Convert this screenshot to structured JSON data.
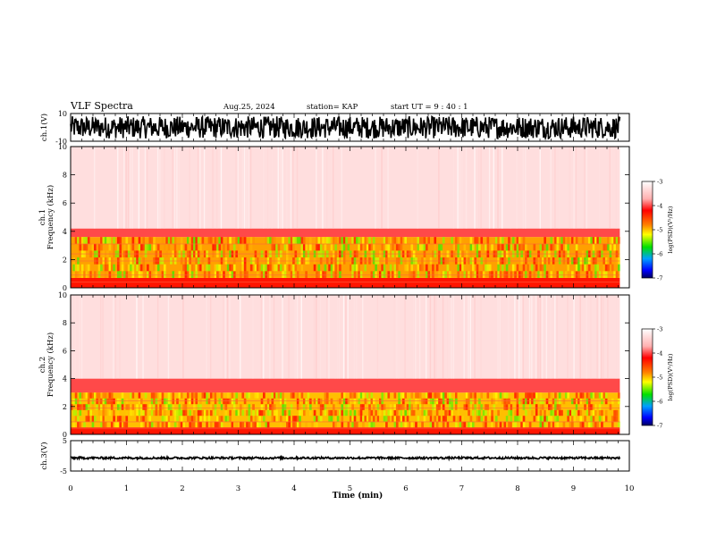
{
  "header": {
    "title": "VLF Spectra",
    "date": "Aug.25, 2024",
    "station": "station= KAP",
    "start_ut": "start  UT =   9 : 40 : 1"
  },
  "chart_data": [
    {
      "type": "line",
      "panel": "ch1-waveform",
      "ylabel": "ch.1(V)",
      "ylim": [
        -10,
        10
      ],
      "y_ticks": [
        "10",
        "-10"
      ],
      "x_range_min": [
        0,
        10
      ],
      "data_end_min": 9.83,
      "description_of_values": "dense noise-like waveform filling roughly -8 to +8 V"
    },
    {
      "type": "heatmap",
      "panel": "ch1-spectrogram",
      "ylabel_top": "ch.1",
      "ylabel": "Frequency (kHz)",
      "ylim": [
        0,
        10
      ],
      "y_ticks": [
        "0",
        "2",
        "4",
        "6",
        "8",
        "10"
      ],
      "x_range_min": [
        0,
        10
      ],
      "data_end_min": 9.83,
      "colorbar": {
        "label": "log(PSD)(V²/Hz)",
        "range": [
          -7,
          -3
        ],
        "ticks": [
          "-3",
          "-4",
          "-5",
          "-6",
          "-7"
        ]
      },
      "bands_khz": [
        {
          "from": 0.0,
          "to": 0.7,
          "level": -4.3
        },
        {
          "from": 0.7,
          "to": 3.6,
          "level": -4.9
        },
        {
          "from": 3.6,
          "to": 4.2,
          "level": -4.0
        },
        {
          "from": 4.2,
          "to": 10.0,
          "level": -3.3
        }
      ]
    },
    {
      "type": "heatmap",
      "panel": "ch2-spectrogram",
      "ylabel_top": "ch.2",
      "ylabel": "Frequency (kHz)",
      "ylim": [
        0,
        10
      ],
      "y_ticks": [
        "0",
        "2",
        "4",
        "6",
        "8",
        "10"
      ],
      "x_range_min": [
        0,
        10
      ],
      "data_end_min": 9.83,
      "colorbar": {
        "label": "log(PSD)(V²/Hz)",
        "range": [
          -7,
          -3
        ],
        "ticks": [
          "-3",
          "-4",
          "-5",
          "-6",
          "-7"
        ]
      },
      "bands_khz": [
        {
          "from": 0.0,
          "to": 0.5,
          "level": -4.3
        },
        {
          "from": 0.5,
          "to": 3.0,
          "level": -5.0
        },
        {
          "from": 3.0,
          "to": 4.0,
          "level": -4.0
        },
        {
          "from": 4.0,
          "to": 10.0,
          "level": -3.3
        }
      ]
    },
    {
      "type": "line",
      "panel": "ch3-waveform",
      "ylabel": "ch.3(V)",
      "ylim": [
        -5,
        5
      ],
      "y_ticks": [
        "5",
        "-5"
      ],
      "x_range_min": [
        0,
        10
      ],
      "data_end_min": 9.83,
      "description_of_values": "thin near-constant band at about -1 V"
    }
  ],
  "x_axis": {
    "label": "Time  (min)",
    "ticks": [
      "0",
      "1",
      "2",
      "3",
      "4",
      "5",
      "6",
      "7",
      "8",
      "9",
      "10"
    ]
  },
  "colors": {
    "bar_top": "#ffffff",
    "bar_stops": [
      "#ffffff",
      "#ff0000",
      "#ffff00",
      "#00ff00",
      "#0000ff",
      "#000080"
    ]
  }
}
